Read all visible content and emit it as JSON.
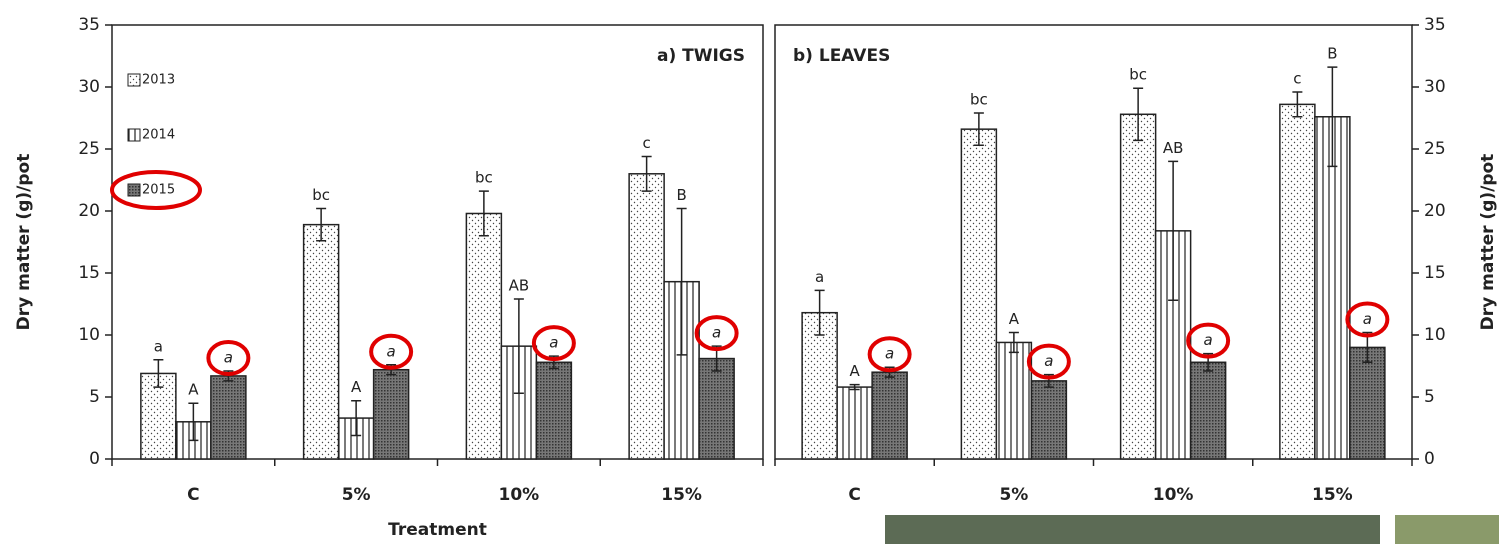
{
  "chart_data": [
    {
      "type": "bar",
      "annotation": "a) TWIGS",
      "ylabel": "Dry matter (g)/pot",
      "xlabel": "Treatment",
      "categories": [
        "C",
        "5%",
        "10%",
        "15%"
      ],
      "ylim": [
        0,
        35
      ],
      "yticks": [
        0,
        5,
        10,
        15,
        20,
        25,
        30,
        35
      ],
      "y_axis_side": "left",
      "legend": true,
      "highlight_color": "#e00000",
      "series": [
        {
          "name": "2013",
          "color": "#ffffff",
          "hatch": "dots",
          "values": [
            6.9,
            18.9,
            19.8,
            23.0
          ],
          "errors": [
            1.1,
            1.3,
            1.8,
            1.4
          ],
          "letters": [
            "a",
            "bc",
            "bc",
            "c"
          ]
        },
        {
          "name": "2014",
          "color": "#ffffff",
          "hatch": "vertical",
          "values": [
            3.0,
            3.3,
            9.1,
            14.3
          ],
          "errors": [
            1.5,
            1.4,
            3.8,
            5.9
          ],
          "letters": [
            "A",
            "A",
            "AB",
            "B"
          ]
        },
        {
          "name": "2015",
          "color": "#888888",
          "hatch": "cross",
          "italic": true,
          "highlighted": true,
          "values": [
            6.7,
            7.2,
            7.8,
            8.1
          ],
          "errors": [
            0.4,
            0.4,
            0.5,
            1.0
          ],
          "letters": [
            "a",
            "a",
            "a",
            "a"
          ]
        }
      ]
    },
    {
      "type": "bar",
      "annotation": "b) LEAVES",
      "ylabel": "Dry matter (g)/pot",
      "categories": [
        "C",
        "5%",
        "10%",
        "15%"
      ],
      "ylim": [
        0,
        35
      ],
      "yticks": [
        0,
        5,
        10,
        15,
        20,
        25,
        30,
        35
      ],
      "y_axis_side": "right",
      "legend": false,
      "highlight_color": "#e00000",
      "series": [
        {
          "name": "2013",
          "color": "#ffffff",
          "hatch": "dots",
          "values": [
            11.8,
            26.6,
            27.8,
            28.6
          ],
          "errors": [
            1.8,
            1.3,
            2.1,
            1.0
          ],
          "letters": [
            "a",
            "bc",
            "bc",
            "c"
          ]
        },
        {
          "name": "2014",
          "color": "#ffffff",
          "hatch": "vertical",
          "values": [
            5.8,
            9.4,
            18.4,
            27.6
          ],
          "errors": [
            0.2,
            0.8,
            5.6,
            4.0
          ],
          "letters": [
            "A",
            "A",
            "AB",
            "B"
          ]
        },
        {
          "name": "2015",
          "color": "#888888",
          "hatch": "cross",
          "italic": true,
          "highlighted": true,
          "values": [
            7.0,
            6.3,
            7.8,
            9.0
          ],
          "errors": [
            0.4,
            0.5,
            0.7,
            1.2
          ],
          "letters": [
            "a",
            "a",
            "a",
            "a"
          ]
        }
      ]
    }
  ]
}
